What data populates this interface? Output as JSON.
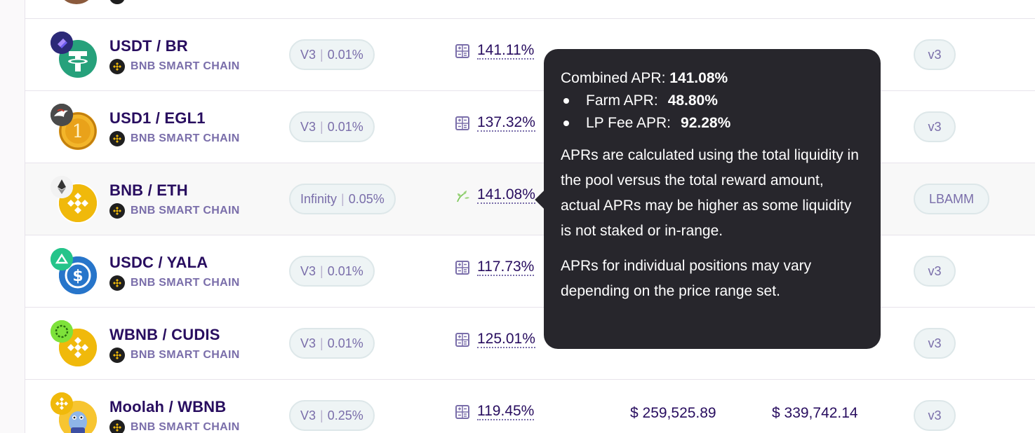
{
  "rows": [
    {
      "pair": "USDT / BR",
      "chain": "BNB SMART CHAIN",
      "fee_type": "V3",
      "fee": "0.01%",
      "apr": "141.11%",
      "apr_icon": "calculator-icon",
      "protocol": "v3"
    },
    {
      "pair": "USD1 / EGL1",
      "chain": "BNB SMART CHAIN",
      "fee_type": "V3",
      "fee": "0.01%",
      "apr": "137.32%",
      "apr_icon": "calculator-icon",
      "protocol": "v3"
    },
    {
      "pair": "BNB / ETH",
      "chain": "BNB SMART CHAIN",
      "fee_type": "Infinity",
      "fee": "0.05%",
      "apr": "141.08%",
      "apr_icon": "farm-sprout-icon",
      "protocol": "LBAMM"
    },
    {
      "pair": "USDC / YALA",
      "chain": "BNB SMART CHAIN",
      "fee_type": "V3",
      "fee": "0.01%",
      "apr": "117.73%",
      "apr_icon": "calculator-icon",
      "protocol": "v3"
    },
    {
      "pair": "WBNB / CUDIS",
      "chain": "BNB SMART CHAIN",
      "fee_type": "V3",
      "fee": "0.01%",
      "apr": "125.01%",
      "apr_icon": "calculator-icon",
      "protocol": "v3"
    },
    {
      "pair": "Moolah / WBNB",
      "chain": "BNB SMART CHAIN",
      "fee_type": "V3",
      "fee": "0.25%",
      "apr": "119.45%",
      "apr_icon": "calculator-icon",
      "tvl": "$ 259,525.89",
      "volume": "$ 339,742.14",
      "protocol": "v3"
    }
  ],
  "tooltip": {
    "combined_label": "Combined APR:",
    "combined_value": "141.08%",
    "farm_label": "Farm APR:",
    "farm_value": "48.80%",
    "lp_label": "LP Fee APR:",
    "lp_value": "92.28%",
    "para1": "APRs are calculated using the total liquidity in the pool versus the total reward amount, actual APRs may be higher as some liquidity is not staked or in-range.",
    "para2": "APRs for individual positions may vary depending on the price range set."
  },
  "colors": {
    "text_primary": "#280d5f",
    "text_secondary": "#7a6eaa",
    "pill_bg": "#eef4f5",
    "tooltip_bg": "#27262c",
    "usdt": "#26a17b",
    "bnb": "#f0b90b",
    "usdc": "#2775ca"
  }
}
